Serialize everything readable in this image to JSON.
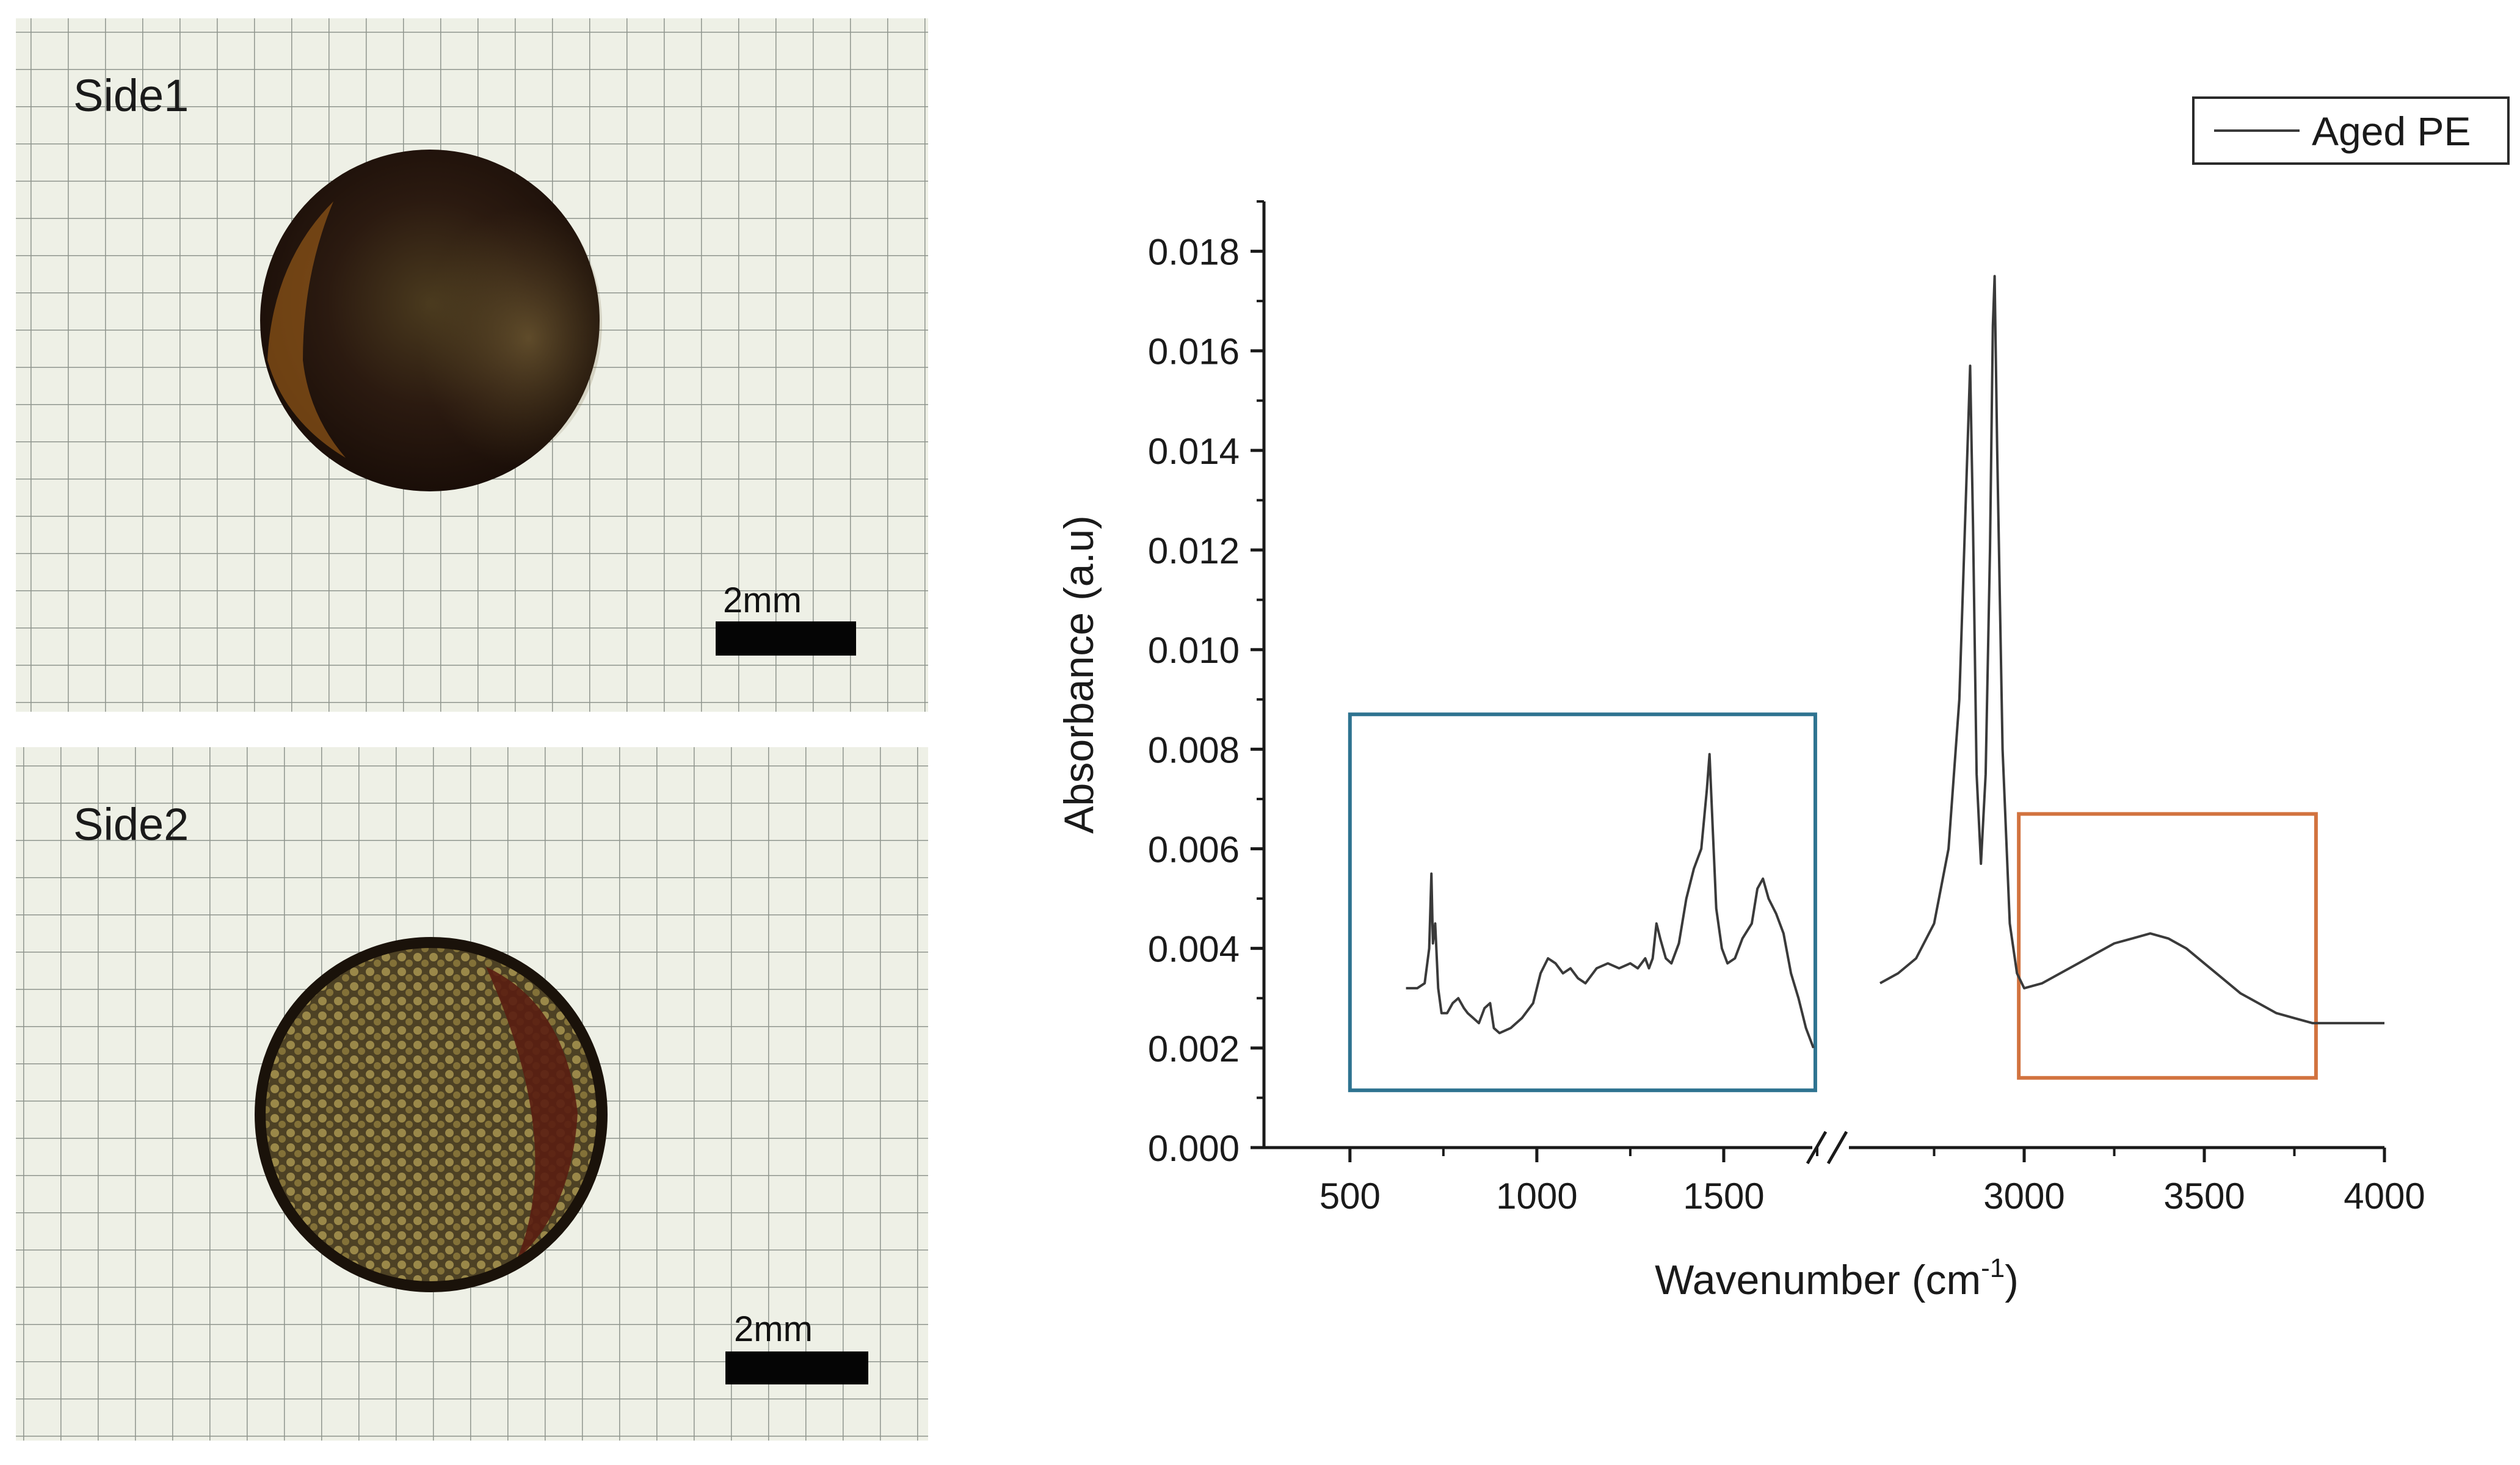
{
  "panels": [
    {
      "label": "Side1",
      "scale_label": "2mm"
    },
    {
      "label": "Side2",
      "scale_label": "2mm"
    }
  ],
  "colors": {
    "grid_line": "#8f958d",
    "photo_bg": "#eef0e6",
    "spectrum_line": "#3a3a3a",
    "highlight_left_box": "#2e7390",
    "highlight_right_box": "#d2733f"
  },
  "chart_data": {
    "type": "line",
    "title": "",
    "xlabel": "Wavenumber (cm",
    "xlabel_sup": "-1",
    "xlabel_close": ")",
    "ylabel": "Absorbance (a.u)",
    "xlim": [
      270,
      4000
    ],
    "axis_break": [
      1750,
      2500
    ],
    "ylim": [
      0,
      0.019
    ],
    "x_ticks": [
      {
        "value": 500,
        "label": "500"
      },
      {
        "value": 1000,
        "label": "1000"
      },
      {
        "value": 1500,
        "label": "1500"
      },
      {
        "value": 3000,
        "label": "3000"
      },
      {
        "value": 3500,
        "label": "3500"
      },
      {
        "value": 4000,
        "label": "4000"
      }
    ],
    "y_ticks": [
      {
        "value": 0.0,
        "label": "0.000"
      },
      {
        "value": 0.002,
        "label": "0.002"
      },
      {
        "value": 0.004,
        "label": "0.004"
      },
      {
        "value": 0.006,
        "label": "0.006"
      },
      {
        "value": 0.008,
        "label": "0.008"
      },
      {
        "value": 0.01,
        "label": "0.010"
      },
      {
        "value": 0.012,
        "label": "0.012"
      },
      {
        "value": 0.014,
        "label": "0.014"
      },
      {
        "value": 0.016,
        "label": "0.016"
      },
      {
        "value": 0.018,
        "label": "0.018"
      }
    ],
    "legend": {
      "position": "top-right"
    },
    "series": [
      {
        "name": "Aged PE",
        "segments": [
          {
            "points": [
              [
                650,
                0.0032
              ],
              [
                680,
                0.0032
              ],
              [
                700,
                0.0033
              ],
              [
                712,
                0.004
              ],
              [
                718,
                0.0055
              ],
              [
                722,
                0.0041
              ],
              [
                728,
                0.0045
              ],
              [
                736,
                0.0032
              ],
              [
                745,
                0.0027
              ],
              [
                760,
                0.0027
              ],
              [
                775,
                0.0029
              ],
              [
                790,
                0.003
              ],
              [
                805,
                0.0028
              ],
              [
                815,
                0.0027
              ],
              [
                830,
                0.0026
              ],
              [
                845,
                0.0025
              ],
              [
                860,
                0.0028
              ],
              [
                875,
                0.0029
              ],
              [
                885,
                0.0024
              ],
              [
                900,
                0.0023
              ],
              [
                930,
                0.0024
              ],
              [
                960,
                0.0026
              ],
              [
                990,
                0.0029
              ],
              [
                1010,
                0.0035
              ],
              [
                1030,
                0.0038
              ],
              [
                1050,
                0.0037
              ],
              [
                1070,
                0.0035
              ],
              [
                1090,
                0.0036
              ],
              [
                1110,
                0.0034
              ],
              [
                1130,
                0.0033
              ],
              [
                1160,
                0.0036
              ],
              [
                1190,
                0.0037
              ],
              [
                1220,
                0.0036
              ],
              [
                1250,
                0.0037
              ],
              [
                1270,
                0.0036
              ],
              [
                1290,
                0.0038
              ],
              [
                1300,
                0.0036
              ],
              [
                1310,
                0.0038
              ],
              [
                1320,
                0.0045
              ],
              [
                1330,
                0.0042
              ],
              [
                1345,
                0.0038
              ],
              [
                1360,
                0.0037
              ],
              [
                1380,
                0.0041
              ],
              [
                1400,
                0.005
              ],
              [
                1420,
                0.0056
              ],
              [
                1440,
                0.006
              ],
              [
                1455,
                0.0072
              ],
              [
                1462,
                0.0079
              ],
              [
                1470,
                0.0065
              ],
              [
                1480,
                0.0048
              ],
              [
                1495,
                0.004
              ],
              [
                1510,
                0.0037
              ],
              [
                1530,
                0.0038
              ],
              [
                1550,
                0.0042
              ],
              [
                1575,
                0.0045
              ],
              [
                1590,
                0.0052
              ],
              [
                1605,
                0.0054
              ],
              [
                1620,
                0.005
              ],
              [
                1640,
                0.0047
              ],
              [
                1660,
                0.0043
              ],
              [
                1680,
                0.0035
              ],
              [
                1700,
                0.003
              ],
              [
                1720,
                0.0024
              ],
              [
                1740,
                0.002
              ]
            ]
          },
          {
            "points": [
              [
                2600,
                0.0033
              ],
              [
                2650,
                0.0035
              ],
              [
                2700,
                0.0038
              ],
              [
                2750,
                0.0045
              ],
              [
                2790,
                0.006
              ],
              [
                2820,
                0.009
              ],
              [
                2838,
                0.013
              ],
              [
                2850,
                0.0157
              ],
              [
                2858,
                0.0125
              ],
              [
                2868,
                0.0075
              ],
              [
                2880,
                0.0057
              ],
              [
                2893,
                0.0075
              ],
              [
                2905,
                0.012
              ],
              [
                2913,
                0.0165
              ],
              [
                2918,
                0.0175
              ],
              [
                2925,
                0.014
              ],
              [
                2940,
                0.008
              ],
              [
                2960,
                0.0045
              ],
              [
                2980,
                0.0035
              ],
              [
                3000,
                0.0032
              ],
              [
                3050,
                0.0033
              ],
              [
                3100,
                0.0035
              ],
              [
                3150,
                0.0037
              ],
              [
                3200,
                0.0039
              ],
              [
                3250,
                0.0041
              ],
              [
                3300,
                0.0042
              ],
              [
                3350,
                0.0043
              ],
              [
                3400,
                0.0042
              ],
              [
                3450,
                0.004
              ],
              [
                3500,
                0.0037
              ],
              [
                3550,
                0.0034
              ],
              [
                3600,
                0.0031
              ],
              [
                3650,
                0.0029
              ],
              [
                3700,
                0.0027
              ],
              [
                3750,
                0.0026
              ],
              [
                3800,
                0.0025
              ],
              [
                3850,
                0.0025
              ],
              [
                3900,
                0.0025
              ],
              [
                3950,
                0.0025
              ],
              [
                4000,
                0.0025
              ]
            ]
          }
        ]
      }
    ],
    "highlight_boxes": [
      {
        "x": [
          500,
          1745
        ],
        "y": [
          0.00115,
          0.0087
        ],
        "color": "#2e7390"
      },
      {
        "x": [
          2985,
          3810
        ],
        "y": [
          0.0014,
          0.0067
        ],
        "color": "#d2733f"
      }
    ]
  }
}
